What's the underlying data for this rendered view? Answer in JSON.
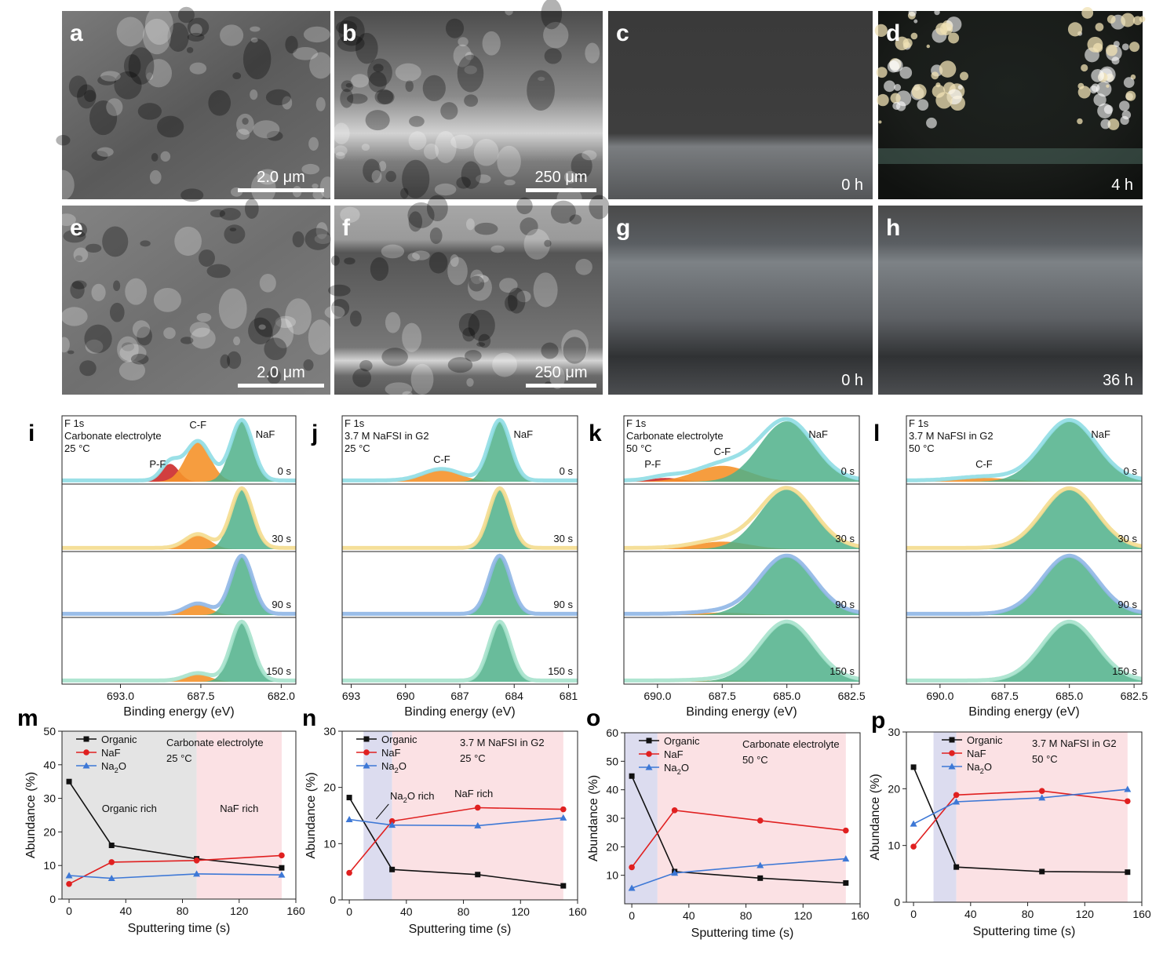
{
  "photo_panels": [
    {
      "letter": "a",
      "scale": "2.0 μm",
      "time": ""
    },
    {
      "letter": "b",
      "scale": "250 μm",
      "time": ""
    },
    {
      "letter": "c",
      "scale": "",
      "time": "0 h"
    },
    {
      "letter": "d",
      "scale": "",
      "time": "4 h"
    },
    {
      "letter": "e",
      "scale": "2.0 μm",
      "time": ""
    },
    {
      "letter": "f",
      "scale": "250 μm",
      "time": ""
    },
    {
      "letter": "g",
      "scale": "",
      "time": "0 h"
    },
    {
      "letter": "h",
      "scale": "",
      "time": "36 h"
    }
  ],
  "colors": {
    "naf_fill": "#4fb08a",
    "cf_fill": "#f5922a",
    "pf_fill": "#cc2a2a",
    "trace_0s": "#8fdde4",
    "trace_30s": "#f4dc8e",
    "trace_90s": "#8fb6e6",
    "trace_150s": "#a6e2cc",
    "organic": "#111111",
    "naf_line": "#e02020",
    "na2o": "#3d78d6",
    "organic_rich_shade": "#e4e4e4",
    "naf_rich_shade": "#fbe1e4",
    "na2o_rich_shade": "#dcdcef"
  },
  "chart_data": [
    {
      "letter": "i",
      "type": "area",
      "title": "F 1s",
      "subtitle": [
        "Carbonate electrolyte",
        "25 °C"
      ],
      "xlabel": "Binding energy (eV)",
      "xticks": [
        "693.0",
        "687.5",
        "682.0"
      ],
      "xlim": [
        697,
        681
      ],
      "tick_values": [
        693.0,
        687.5,
        682.0
      ],
      "peaks": {
        "NaF": 684.7,
        "C-F": 687.7,
        "P-F": 689.6
      },
      "peak_labels": [
        "P-F",
        "C-F",
        "NaF"
      ],
      "times": [
        "0 s",
        "30 s",
        "90 s",
        "150 s"
      ],
      "rows": [
        {
          "naf": 0.95,
          "cf": 0.62,
          "pf": 0.28
        },
        {
          "naf": 0.95,
          "cf": 0.22,
          "pf": 0
        },
        {
          "naf": 0.95,
          "cf": 0.17,
          "pf": 0
        },
        {
          "naf": 0.95,
          "cf": 0.12,
          "pf": 0
        }
      ]
    },
    {
      "letter": "j",
      "type": "area",
      "title": "F 1s",
      "subtitle": [
        "3.7 M NaFSI in G2",
        "25 °C"
      ],
      "xlabel": "Binding energy (eV)",
      "xticks": [
        "693",
        "690",
        "687",
        "684",
        "681"
      ],
      "xlim": [
        693.5,
        680.5
      ],
      "tick_values": [
        693,
        690,
        687,
        684,
        681
      ],
      "peaks": {
        "NaF": 684.8,
        "C-F": 688.0,
        "P-F": null
      },
      "peak_labels": [
        "C-F",
        "NaF"
      ],
      "times": [
        "0 s",
        "30 s",
        "90 s",
        "150 s"
      ],
      "rows": [
        {
          "naf": 0.95,
          "cf": 0.18,
          "pf": 0
        },
        {
          "naf": 0.95,
          "cf": 0,
          "pf": 0
        },
        {
          "naf": 0.95,
          "cf": 0,
          "pf": 0
        },
        {
          "naf": 0.95,
          "cf": 0,
          "pf": 0
        }
      ]
    },
    {
      "letter": "k",
      "type": "area",
      "title": "F 1s",
      "subtitle": [
        "Carbonate electrolyte",
        "50 °C"
      ],
      "xlabel": "Binding energy (eV)",
      "xticks": [
        "690.0",
        "687.5",
        "685.0",
        "682.5"
      ],
      "xlim": [
        691.3,
        682.2
      ],
      "tick_values": [
        690.0,
        687.5,
        685.0,
        682.5
      ],
      "peaks": {
        "NaF": 685.0,
        "C-F": 687.5,
        "P-F": 689.7
      },
      "peak_labels": [
        "P-F",
        "C-F",
        "NaF"
      ],
      "times": [
        "0 s",
        "30 s",
        "90 s",
        "150 s"
      ],
      "rows": [
        {
          "naf": 0.95,
          "cf": 0.25,
          "pf": 0.06
        },
        {
          "naf": 0.95,
          "cf": 0.12,
          "pf": 0
        },
        {
          "naf": 0.95,
          "cf": 0.04,
          "pf": 0
        },
        {
          "naf": 0.95,
          "cf": 0.02,
          "pf": 0
        }
      ]
    },
    {
      "letter": "l",
      "type": "area",
      "title": "F 1s",
      "subtitle": [
        "3.7 M NaFSI in G2",
        "50 °C"
      ],
      "xlabel": "Binding energy (eV)",
      "xticks": [
        "690.0",
        "687.5",
        "685.0",
        "682.5"
      ],
      "xlim": [
        691.3,
        682.2
      ],
      "tick_values": [
        690.0,
        687.5,
        685.0,
        682.5
      ],
      "peaks": {
        "NaF": 685.0,
        "C-F": 688.3,
        "P-F": null
      },
      "peak_labels": [
        "C-F",
        "NaF"
      ],
      "times": [
        "0 s",
        "30 s",
        "90 s",
        "150 s"
      ],
      "rows": [
        {
          "naf": 0.95,
          "cf": 0.06,
          "pf": 0
        },
        {
          "naf": 0.95,
          "cf": 0,
          "pf": 0
        },
        {
          "naf": 0.95,
          "cf": 0,
          "pf": 0
        },
        {
          "naf": 0.95,
          "cf": 0,
          "pf": 0
        }
      ]
    },
    {
      "letter": "m",
      "type": "line",
      "annotation": [
        "Carbonate electrolyte",
        "25 °C"
      ],
      "xlabel": "Sputtering time (s)",
      "ylabel": "Abundance (%)",
      "xlim": [
        -5,
        160
      ],
      "ylim": [
        0,
        50
      ],
      "xticks": [
        0,
        40,
        80,
        120,
        160
      ],
      "yticks": [
        0,
        10,
        20,
        30,
        40,
        50
      ],
      "x": [
        0,
        30,
        90,
        150
      ],
      "series": [
        {
          "name": "Organic",
          "values": [
            35.0,
            16.0,
            12.0,
            9.3
          ],
          "marker": "square"
        },
        {
          "name": "NaF",
          "values": [
            4.5,
            11.0,
            11.5,
            13.0
          ],
          "marker": "circle"
        },
        {
          "name": "Na2O",
          "values": [
            7.0,
            6.2,
            7.5,
            7.2
          ],
          "marker": "triangle"
        }
      ],
      "regions": [
        {
          "from": -5,
          "to": 90,
          "label": "Organic rich",
          "shade": "organic_rich_shade"
        },
        {
          "from": 90,
          "to": 150,
          "label": "NaF rich",
          "shade": "naf_rich_shade"
        }
      ]
    },
    {
      "letter": "n",
      "type": "line",
      "annotation": [
        "3.7 M NaFSI in G2",
        "25 °C"
      ],
      "xlabel": "Sputtering time (s)",
      "ylabel": "Abundance (%)",
      "xlim": [
        -5,
        160
      ],
      "ylim": [
        0,
        30
      ],
      "xticks": [
        0,
        40,
        80,
        120,
        160
      ],
      "yticks": [
        0,
        10,
        20,
        30
      ],
      "x": [
        0,
        30,
        90,
        150
      ],
      "series": [
        {
          "name": "Organic",
          "values": [
            18.2,
            5.4,
            4.5,
            2.5
          ],
          "marker": "square"
        },
        {
          "name": "NaF",
          "values": [
            4.8,
            14.0,
            16.4,
            16.1
          ],
          "marker": "circle"
        },
        {
          "name": "Na2O",
          "values": [
            14.3,
            13.3,
            13.2,
            14.6
          ],
          "marker": "triangle"
        }
      ],
      "regions": [
        {
          "from": 10,
          "to": 30,
          "label": "Na2O rich",
          "shade": "na2o_rich_shade"
        },
        {
          "from": 30,
          "to": 150,
          "label": "NaF rich",
          "shade": "naf_rich_shade"
        }
      ]
    },
    {
      "letter": "o",
      "type": "line",
      "annotation": [
        "Carbonate electrolyte",
        "50 °C"
      ],
      "xlabel": "Sputtering time (s)",
      "ylabel": "Abundance (%)",
      "xlim": [
        -5,
        160
      ],
      "ylim": [
        0,
        60
      ],
      "xticks": [
        0,
        40,
        80,
        120,
        160
      ],
      "yticks": [
        10,
        20,
        30,
        40,
        50,
        60
      ],
      "x": [
        0,
        30,
        90,
        150
      ],
      "series": [
        {
          "name": "Organic",
          "values": [
            44.8,
            11.3,
            9.0,
            7.3
          ],
          "marker": "square"
        },
        {
          "name": "NaF",
          "values": [
            12.8,
            32.8,
            29.2,
            25.7
          ],
          "marker": "circle"
        },
        {
          "name": "Na2O",
          "values": [
            5.5,
            10.8,
            13.5,
            15.8
          ],
          "marker": "triangle"
        }
      ],
      "regions": [
        {
          "from": -5,
          "to": 18,
          "label": "",
          "shade": "na2o_rich_shade"
        },
        {
          "from": 18,
          "to": 150,
          "label": "",
          "shade": "naf_rich_shade"
        }
      ]
    },
    {
      "letter": "p",
      "type": "line",
      "annotation": [
        "3.7 M NaFSI in G2",
        "50 °C"
      ],
      "xlabel": "Sputtering time (s)",
      "ylabel": "Abundance (%)",
      "xlim": [
        -5,
        160
      ],
      "ylim": [
        0,
        30
      ],
      "xticks": [
        0,
        40,
        80,
        120,
        160
      ],
      "yticks": [
        0,
        10,
        20,
        30
      ],
      "x": [
        0,
        30,
        90,
        150
      ],
      "series": [
        {
          "name": "Organic",
          "values": [
            23.8,
            6.2,
            5.4,
            5.3
          ],
          "marker": "square"
        },
        {
          "name": "NaF",
          "values": [
            9.8,
            18.9,
            19.6,
            17.8
          ],
          "marker": "circle"
        },
        {
          "name": "Na2O",
          "values": [
            13.8,
            17.7,
            18.4,
            19.9
          ],
          "marker": "triangle"
        }
      ],
      "regions": [
        {
          "from": 14,
          "to": 30,
          "label": "",
          "shade": "na2o_rich_shade"
        },
        {
          "from": 30,
          "to": 150,
          "label": "",
          "shade": "naf_rich_shade"
        }
      ]
    }
  ]
}
